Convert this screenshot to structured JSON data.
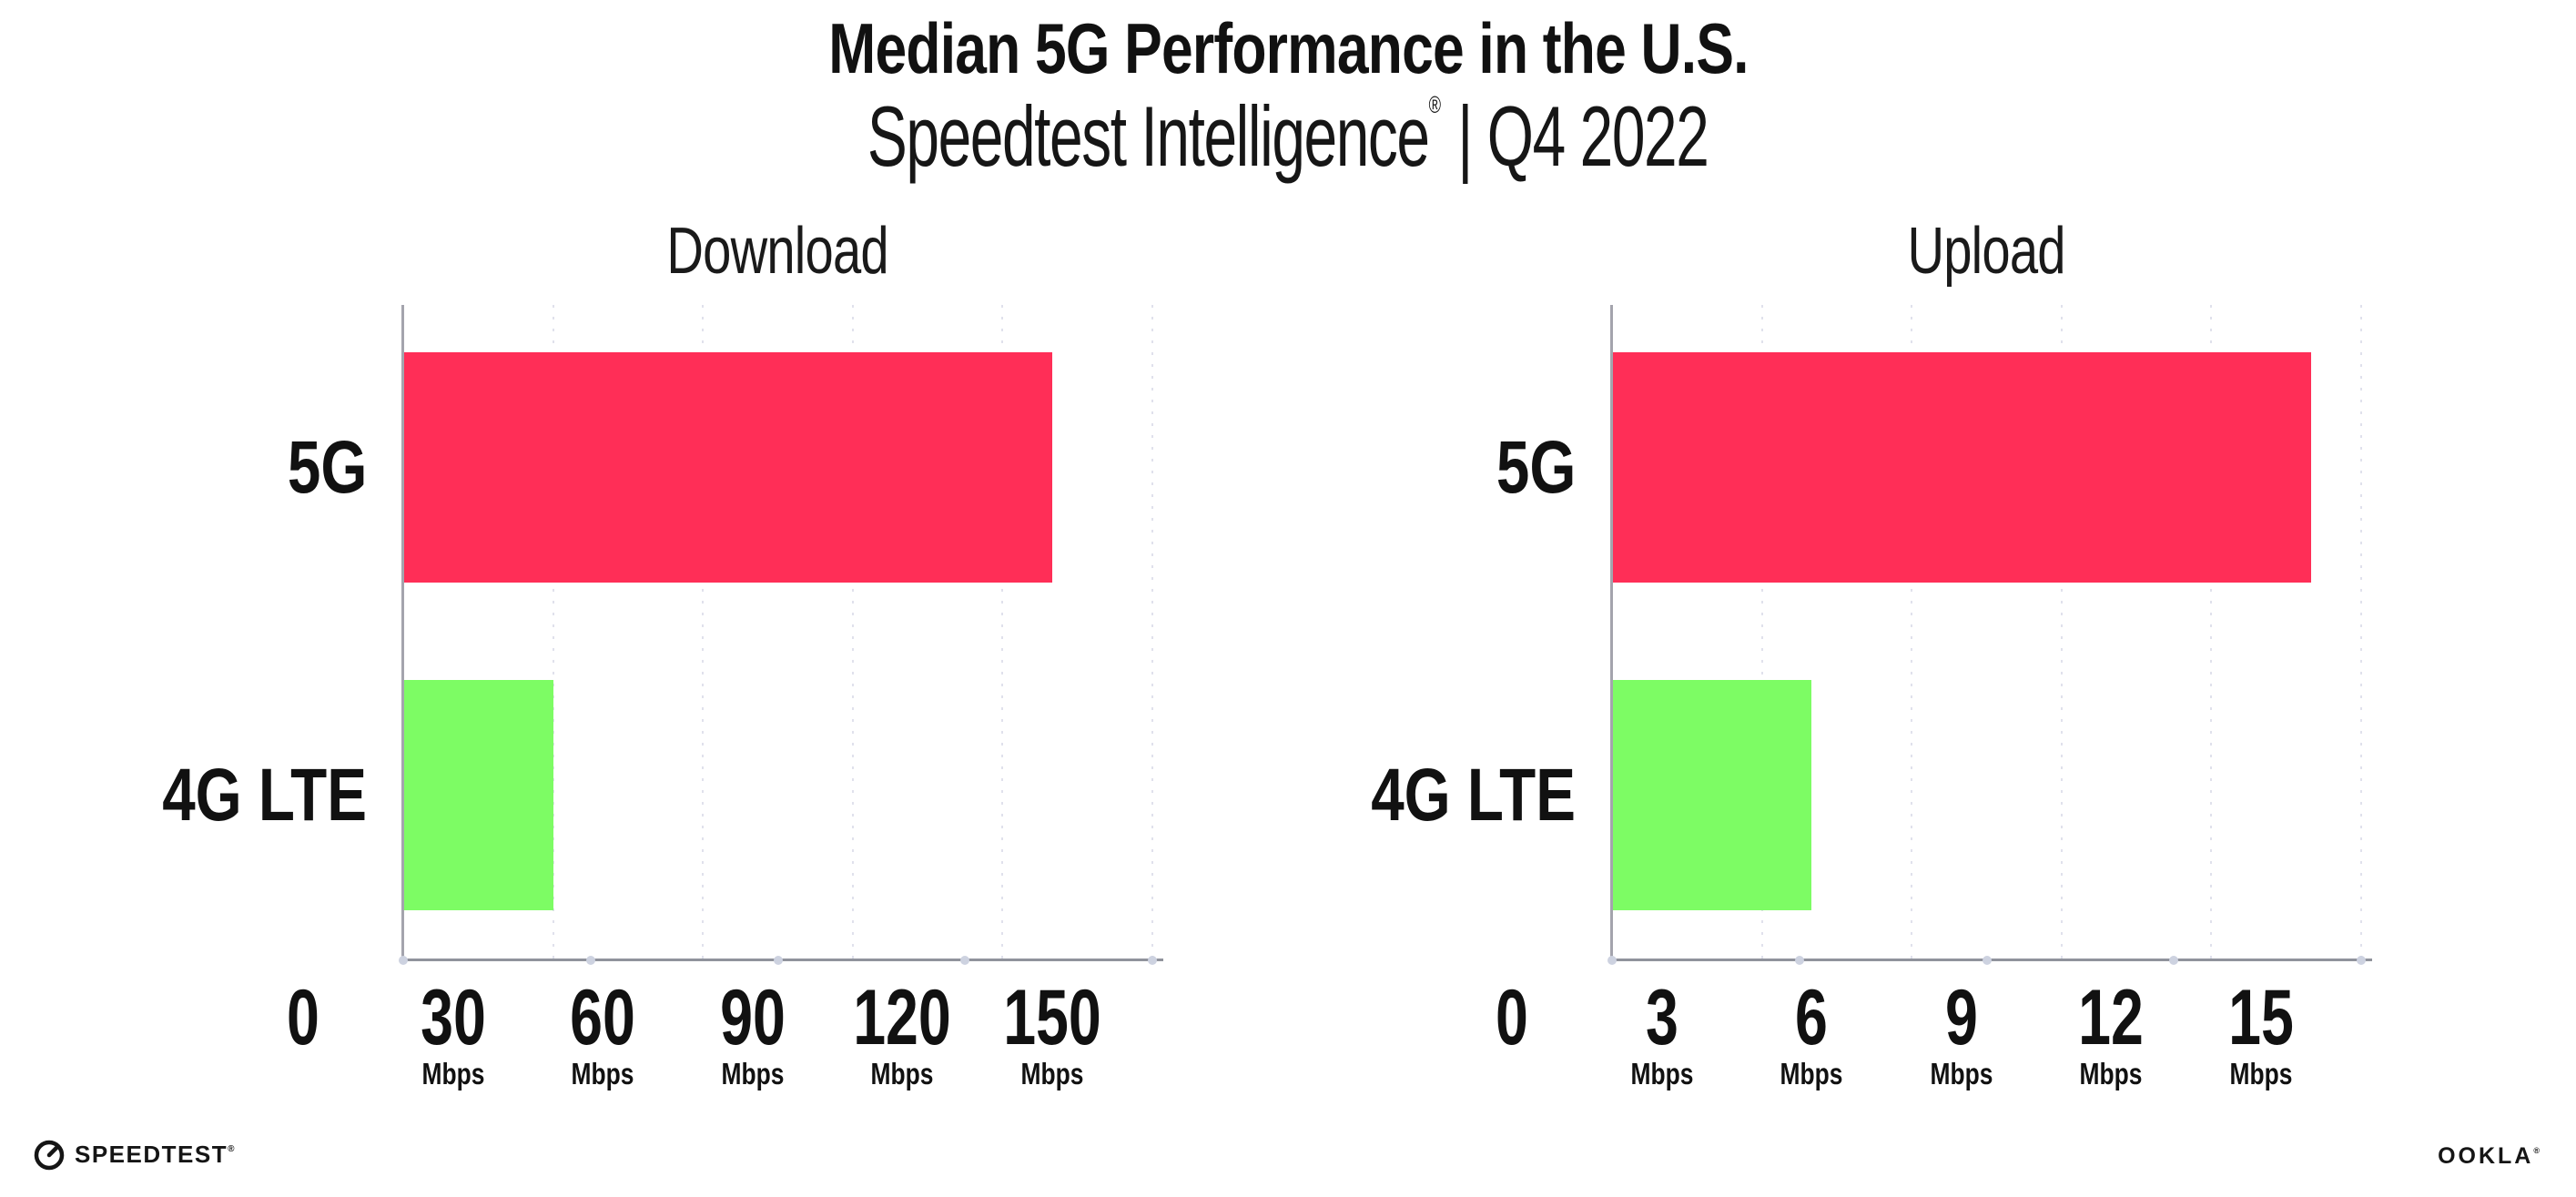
{
  "header": {
    "title": "Median 5G Performance in the U.S.",
    "subtitle_brand": "Speedtest Intelligence",
    "subtitle_reg": "®",
    "subtitle_rest": "| Q4 2022"
  },
  "colors": {
    "bar_5g": "#ff2e57",
    "bar_4g_lte": "#7dfc64",
    "axis_line": "#a4a4ad",
    "gridline_dots": "#e0e1ec",
    "text": "#111111"
  },
  "charts": [
    {
      "title": "Download",
      "rows": [
        {
          "label": "5G"
        },
        {
          "label": "4G LTE"
        }
      ],
      "ticks": [
        {
          "num": "0",
          "unit": ""
        },
        {
          "num": "30",
          "unit": "Mbps"
        },
        {
          "num": "60",
          "unit": "Mbps"
        },
        {
          "num": "90",
          "unit": "Mbps"
        },
        {
          "num": "120",
          "unit": "Mbps"
        },
        {
          "num": "150",
          "unit": "Mbps"
        }
      ]
    },
    {
      "title": "Upload",
      "rows": [
        {
          "label": "5G"
        },
        {
          "label": "4G LTE"
        }
      ],
      "ticks": [
        {
          "num": "0",
          "unit": ""
        },
        {
          "num": "3",
          "unit": "Mbps"
        },
        {
          "num": "6",
          "unit": "Mbps"
        },
        {
          "num": "9",
          "unit": "Mbps"
        },
        {
          "num": "12",
          "unit": "Mbps"
        },
        {
          "num": "15",
          "unit": "Mbps"
        }
      ]
    }
  ],
  "chart_data": [
    {
      "type": "bar",
      "orientation": "horizontal",
      "title": "Download",
      "categories": [
        "5G",
        "4G LTE"
      ],
      "values": [
        130,
        30
      ],
      "unit": "Mbps",
      "xlim": [
        0,
        150
      ],
      "xticks": [
        0,
        30,
        60,
        90,
        120,
        150
      ],
      "bar_colors": [
        "#ff2e57",
        "#7dfc64"
      ],
      "grid": "dotted-vertical",
      "legend": "none"
    },
    {
      "type": "bar",
      "orientation": "horizontal",
      "title": "Upload",
      "categories": [
        "5G",
        "4G LTE"
      ],
      "values": [
        14,
        4
      ],
      "unit": "Mbps",
      "xlim": [
        0,
        15
      ],
      "xticks": [
        0,
        3,
        6,
        9,
        12,
        15
      ],
      "bar_colors": [
        "#ff2e57",
        "#7dfc64"
      ],
      "grid": "dotted-vertical",
      "legend": "none"
    }
  ],
  "footer": {
    "speedtest_label": "SPEEDTEST",
    "speedtest_reg": "®",
    "ookla_label": "OOKLA",
    "ookla_reg": "®"
  }
}
